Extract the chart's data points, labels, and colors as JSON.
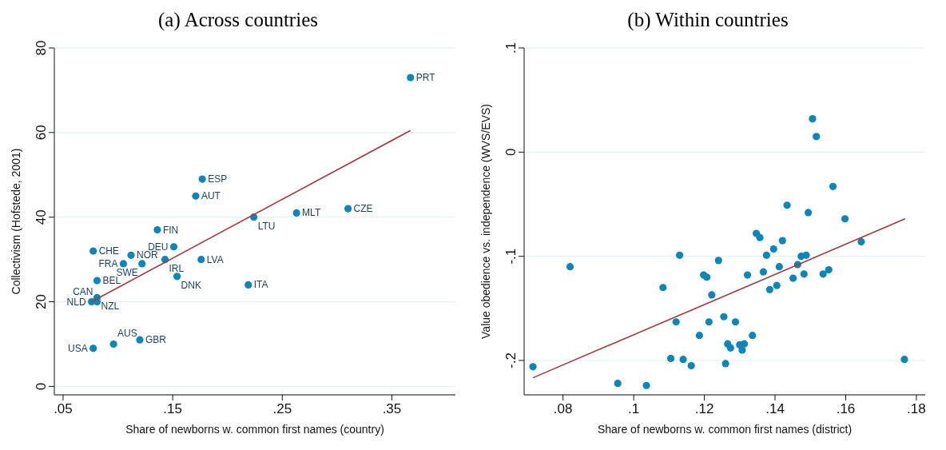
{
  "chart_data": [
    {
      "type": "scatter",
      "title": "(a) Across countries",
      "xlabel": "Share of newborns w. common first names (country)",
      "ylabel": "Collectivism (Hofstede, 2001)",
      "grid": "y",
      "xlim": [
        0.042,
        0.408
      ],
      "xticks": [
        {
          "value": 0.05,
          "label": ".05"
        },
        {
          "value": 0.15,
          "label": ".15"
        },
        {
          "value": 0.25,
          "label": ".25"
        },
        {
          "value": 0.35,
          "label": ".35"
        }
      ],
      "ylim": [
        -2,
        80
      ],
      "yticks": [
        0,
        20,
        40,
        60,
        80
      ],
      "series": [
        {
          "color": "#0c86ba",
          "marker": "circle",
          "x": [
            0.367,
            0.177,
            0.171,
            0.224,
            0.263,
            0.31,
            0.136,
            0.151,
            0.0775,
            0.112,
            0.105,
            0.122,
            0.143,
            0.176,
            0.154,
            0.219,
            0.081,
            0.081,
            0.076,
            0.081,
            0.0775,
            0.096,
            0.12
          ],
          "values": [
            73,
            49,
            45,
            40,
            41,
            42,
            37,
            33,
            32,
            31,
            29,
            29,
            30,
            30,
            26,
            24,
            25,
            21,
            20,
            20,
            9,
            10,
            11
          ]
        },
        {
          "type": "line",
          "color": "#a23a3d",
          "x": [
            0.076,
            0.367
          ],
          "values": [
            20,
            60.5
          ]
        }
      ],
      "annotations": [
        {
          "text": "PRT",
          "x": 0.367,
          "y": 73
        },
        {
          "text": "ESP",
          "x": 0.177,
          "y": 49
        },
        {
          "text": "AUT",
          "x": 0.171,
          "y": 45
        },
        {
          "text": "LTU",
          "x": 0.224,
          "y": 40
        },
        {
          "text": "MLT",
          "x": 0.263,
          "y": 41
        },
        {
          "text": "CZE",
          "x": 0.31,
          "y": 42
        },
        {
          "text": "FIN",
          "x": 0.136,
          "y": 37
        },
        {
          "text": "DEU",
          "x": 0.151,
          "y": 33
        },
        {
          "text": "CHE",
          "x": 0.0775,
          "y": 32
        },
        {
          "text": "NOR",
          "x": 0.112,
          "y": 31
        },
        {
          "text": "FRA",
          "x": 0.105,
          "y": 29
        },
        {
          "text": "SWE",
          "x": 0.122,
          "y": 29
        },
        {
          "text": "IRL",
          "x": 0.143,
          "y": 30
        },
        {
          "text": "LVA",
          "x": 0.176,
          "y": 30
        },
        {
          "text": "DNK",
          "x": 0.154,
          "y": 26
        },
        {
          "text": "ITA",
          "x": 0.219,
          "y": 24
        },
        {
          "text": "BEL",
          "x": 0.081,
          "y": 25
        },
        {
          "text": "NZL",
          "x": 0.081,
          "y": 21
        },
        {
          "text": "NLD",
          "x": 0.076,
          "y": 20
        },
        {
          "text": "CAN",
          "x": 0.081,
          "y": 20
        },
        {
          "text": "USA",
          "x": 0.0775,
          "y": 9
        },
        {
          "text": "AUS",
          "x": 0.096,
          "y": 10
        },
        {
          "text": "GBR",
          "x": 0.12,
          "y": 11
        }
      ]
    },
    {
      "type": "scatter",
      "title": "(b) Within countries",
      "xlabel": "Share of newborns w. common first names (district)",
      "ylabel": "Value obedience vs. independence (WVS/EVS)",
      "grid": "y",
      "xlim": [
        0.069,
        0.1825
      ],
      "xticks": [
        {
          "value": 0.08,
          "label": ".08"
        },
        {
          "value": 0.1,
          "label": ".1"
        },
        {
          "value": 0.12,
          "label": ".12"
        },
        {
          "value": 0.14,
          "label": ".14"
        },
        {
          "value": 0.16,
          "label": ".16"
        },
        {
          "value": 0.18,
          "label": ".18"
        }
      ],
      "ylim": [
        -0.233,
        0.1
      ],
      "yticks": [
        {
          "value": -0.2,
          "label": "-.2"
        },
        {
          "value": -0.1,
          "label": "-.1"
        },
        0,
        {
          "value": 0.1,
          "label": ".1"
        }
      ],
      "series": [
        {
          "color": "#0c86ba",
          "marker": "circle",
          "x": [
            0.0715,
            0.082,
            0.0955,
            0.1036,
            0.1083,
            0.1105,
            0.112,
            0.113,
            0.114,
            0.1163,
            0.1186,
            0.1198,
            0.1207,
            0.1213,
            0.1221,
            0.124,
            0.1255,
            0.126,
            0.1266,
            0.1274,
            0.1288,
            0.13,
            0.1307,
            0.1313,
            0.1322,
            0.1336,
            0.1347,
            0.1357,
            0.1367,
            0.1376,
            0.1385,
            0.1396,
            0.1405,
            0.1412,
            0.1421,
            0.1434,
            0.1451,
            0.1464,
            0.1474,
            0.1482,
            0.1488,
            0.1494,
            0.1506,
            0.1517,
            0.1536,
            0.1552,
            0.1564,
            0.1598,
            0.1644,
            0.1766
          ],
          "values": [
            -0.206,
            -0.11,
            -0.222,
            -0.224,
            -0.13,
            -0.198,
            -0.163,
            -0.099,
            -0.199,
            -0.205,
            -0.176,
            -0.118,
            -0.12,
            -0.163,
            -0.137,
            -0.104,
            -0.158,
            -0.203,
            -0.184,
            -0.188,
            -0.163,
            -0.185,
            -0.19,
            -0.184,
            -0.118,
            -0.176,
            -0.078,
            -0.082,
            -0.115,
            -0.099,
            -0.132,
            -0.093,
            -0.128,
            -0.11,
            -0.085,
            -0.051,
            -0.121,
            -0.108,
            -0.1,
            -0.117,
            -0.099,
            -0.058,
            0.032,
            0.015,
            -0.117,
            -0.113,
            -0.033,
            -0.064,
            -0.086,
            -0.199
          ]
        },
        {
          "type": "line",
          "color": "#a23a3d",
          "x": [
            0.0715,
            0.1768
          ],
          "values": [
            -0.2166,
            -0.064
          ]
        }
      ]
    }
  ]
}
